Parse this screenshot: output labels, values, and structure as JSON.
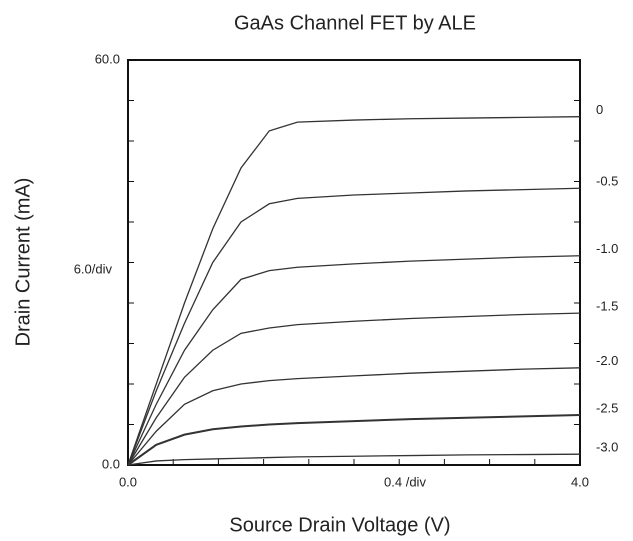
{
  "chart_data": {
    "type": "line",
    "title": "GaAs Channel FET by ALE",
    "x_label": "Source Drain Voltage (V)",
    "y_label": "Drain Current (mA)",
    "annotations": [
      "6.0/div",
      "0.4 /div"
    ],
    "x": [
      0,
      0.25,
      0.5,
      0.75,
      1.0,
      1.25,
      1.5,
      2.0,
      2.5,
      3.0,
      3.5,
      4.0
    ],
    "series": [
      {
        "name": "0",
        "color": "#333333",
        "values": [
          0,
          12,
          24,
          35,
          44,
          49.5,
          50.8,
          51.1,
          51.3,
          51.4,
          51.5,
          51.6
        ]
      },
      {
        "name": "-0.5",
        "color": "#333333",
        "values": [
          0,
          11,
          21,
          30,
          36,
          38.7,
          39.5,
          40.0,
          40.3,
          40.6,
          40.8,
          41.0
        ]
      },
      {
        "name": "-1.0",
        "color": "#333333",
        "values": [
          0,
          9,
          17,
          23,
          27.5,
          28.8,
          29.3,
          29.8,
          30.2,
          30.5,
          30.8,
          31.0
        ]
      },
      {
        "name": "-1.5",
        "color": "#333333",
        "values": [
          0,
          7,
          13,
          17,
          19.5,
          20.3,
          20.8,
          21.3,
          21.7,
          22.0,
          22.3,
          22.5
        ]
      },
      {
        "name": "-2.0",
        "color": "#333333",
        "values": [
          0,
          5,
          9,
          11,
          12,
          12.5,
          12.8,
          13.2,
          13.6,
          13.9,
          14.2,
          14.4
        ]
      },
      {
        "name": "-2.5",
        "color": "#333333",
        "values": [
          0,
          3,
          4.5,
          5.3,
          5.7,
          6.0,
          6.2,
          6.5,
          6.8,
          7.0,
          7.2,
          7.4
        ]
      },
      {
        "name": "-3.0",
        "color": "#333333",
        "values": [
          0,
          0.6,
          0.8,
          0.9,
          1.0,
          1.1,
          1.2,
          1.3,
          1.4,
          1.5,
          1.55,
          1.6
        ]
      }
    ],
    "xlim": [
      0,
      4
    ],
    "ylim": [
      0,
      60
    ],
    "xticks": [
      {
        "value": 0,
        "label": "0.0"
      },
      {
        "value": 4,
        "label": "4.0"
      }
    ],
    "yticks": [
      {
        "value": 0,
        "label": "0.0"
      },
      {
        "value": 60,
        "label": "60.0"
      }
    ],
    "yminorticks": [
      6,
      12,
      18,
      24,
      30,
      36,
      42,
      48,
      54
    ],
    "xminorticks": [
      0.4,
      0.8,
      1.2,
      1.6,
      2.0,
      2.4,
      2.8,
      3.2,
      3.6
    ],
    "grid": false
  }
}
